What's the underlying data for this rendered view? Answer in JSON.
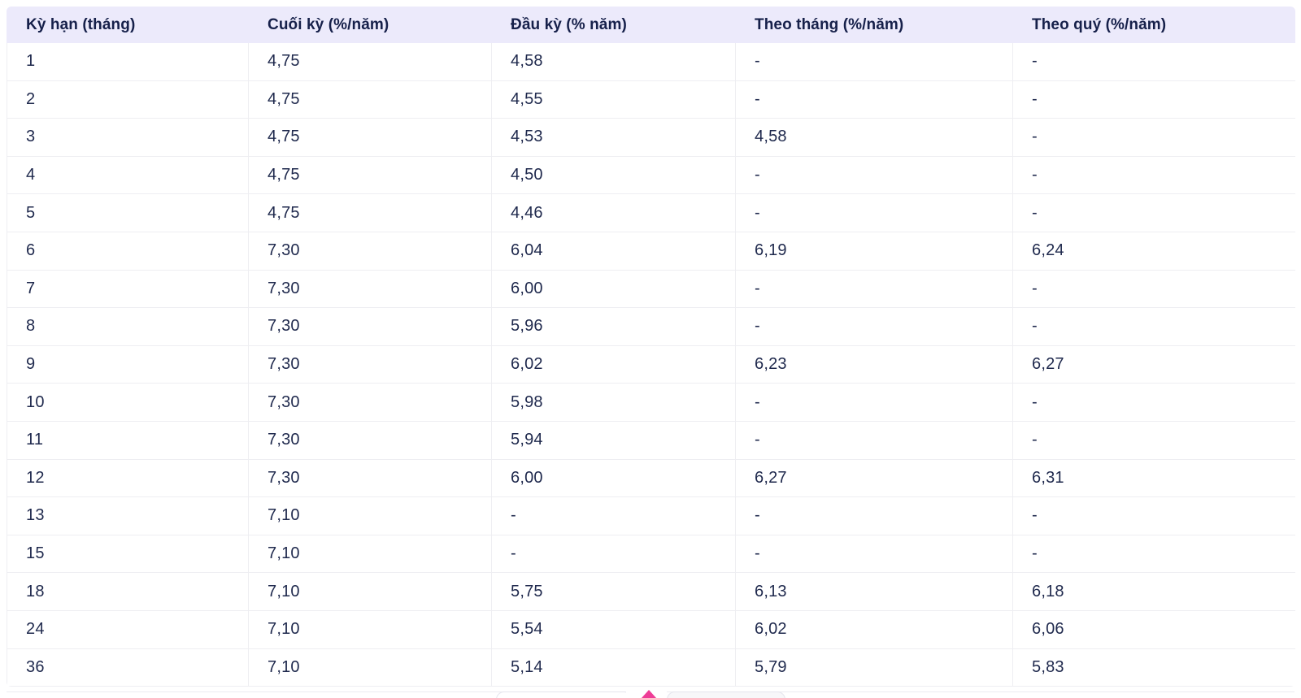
{
  "table": {
    "columns": [
      "Kỳ hạn (tháng)",
      "Cuối kỳ (%/năm)",
      "Đầu kỳ (% năm)",
      "Theo tháng (%/năm)",
      "Theo quý (%/năm)"
    ],
    "rows": [
      [
        "1",
        "4,75",
        "4,58",
        "-",
        "-"
      ],
      [
        "2",
        "4,75",
        "4,55",
        "-",
        "-"
      ],
      [
        "3",
        "4,75",
        "4,53",
        "4,58",
        "-"
      ],
      [
        "4",
        "4,75",
        "4,50",
        "-",
        "-"
      ],
      [
        "5",
        "4,75",
        "4,46",
        "-",
        "-"
      ],
      [
        "6",
        "7,30",
        "6,04",
        "6,19",
        "6,24"
      ],
      [
        "7",
        "7,30",
        "6,00",
        "-",
        "-"
      ],
      [
        "8",
        "7,30",
        "5,96",
        "-",
        "-"
      ],
      [
        "9",
        "7,30",
        "6,02",
        "6,23",
        "6,27"
      ],
      [
        "10",
        "7,30",
        "5,98",
        "-",
        "-"
      ],
      [
        "11",
        "7,30",
        "5,94",
        "-",
        "-"
      ],
      [
        "12",
        "7,30",
        "6,00",
        "6,27",
        "6,31"
      ],
      [
        "13",
        "7,10",
        "-",
        "-",
        "-"
      ],
      [
        "15",
        "7,10",
        "-",
        "-",
        "-"
      ],
      [
        "18",
        "7,10",
        "5,75",
        "6,13",
        "6,18"
      ],
      [
        "24",
        "7,10",
        "5,54",
        "6,02",
        "6,06"
      ],
      [
        "36",
        "7,10",
        "5,14",
        "5,79",
        "5,83"
      ]
    ]
  },
  "colors": {
    "header_bg": "#eceafb",
    "header_text": "#16204a",
    "body_text": "#1f294d",
    "row_border": "#eeeef2",
    "caret_pink": "#ee3d96"
  },
  "icons": {
    "bottom_caret": "caret-up"
  }
}
